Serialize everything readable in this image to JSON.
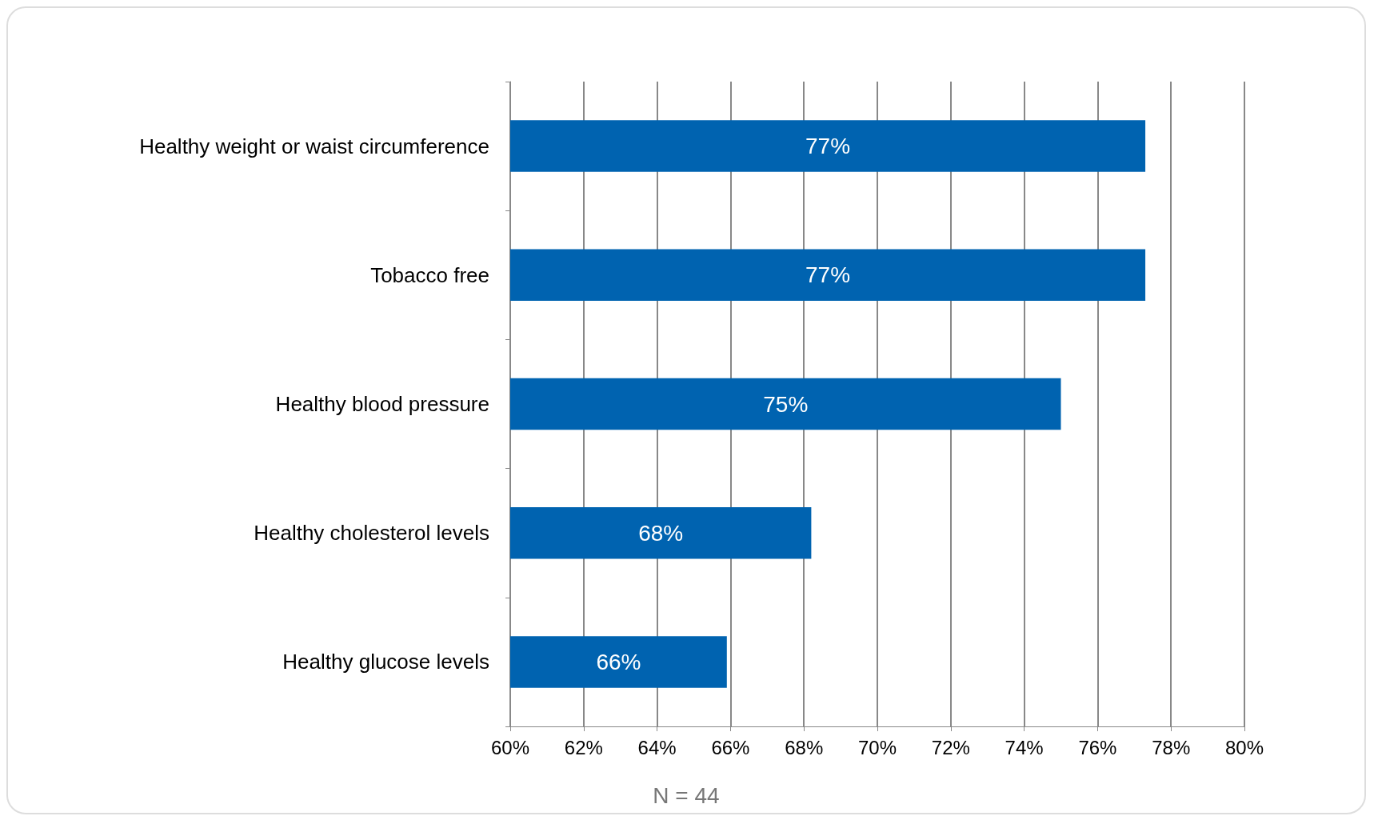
{
  "chart_data": {
    "type": "bar",
    "orientation": "horizontal",
    "categories": [
      "Healthy weight or waist circumference",
      "Tobacco free",
      "Healthy blood pressure",
      "Healthy cholesterol levels",
      "Healthy glucose levels"
    ],
    "values": [
      77.3,
      77.3,
      75.0,
      68.2,
      65.9
    ],
    "value_labels": [
      "77%",
      "77%",
      "75%",
      "68%",
      "66%"
    ],
    "color": "#0063b0",
    "xlim": [
      60,
      80
    ],
    "xticks": [
      {
        "value": 60,
        "label": "60%"
      },
      {
        "value": 62,
        "label": "62%"
      },
      {
        "value": 64,
        "label": "64%"
      },
      {
        "value": 66,
        "label": "66%"
      },
      {
        "value": 68,
        "label": "68%"
      },
      {
        "value": 70,
        "label": "70%"
      },
      {
        "value": 72,
        "label": "72%"
      },
      {
        "value": 74,
        "label": "74%"
      },
      {
        "value": 76,
        "label": "76%"
      },
      {
        "value": 78,
        "label": "78%"
      },
      {
        "value": 80,
        "label": "80%"
      }
    ],
    "grid": "x",
    "annotations": [
      "N = 44"
    ]
  }
}
